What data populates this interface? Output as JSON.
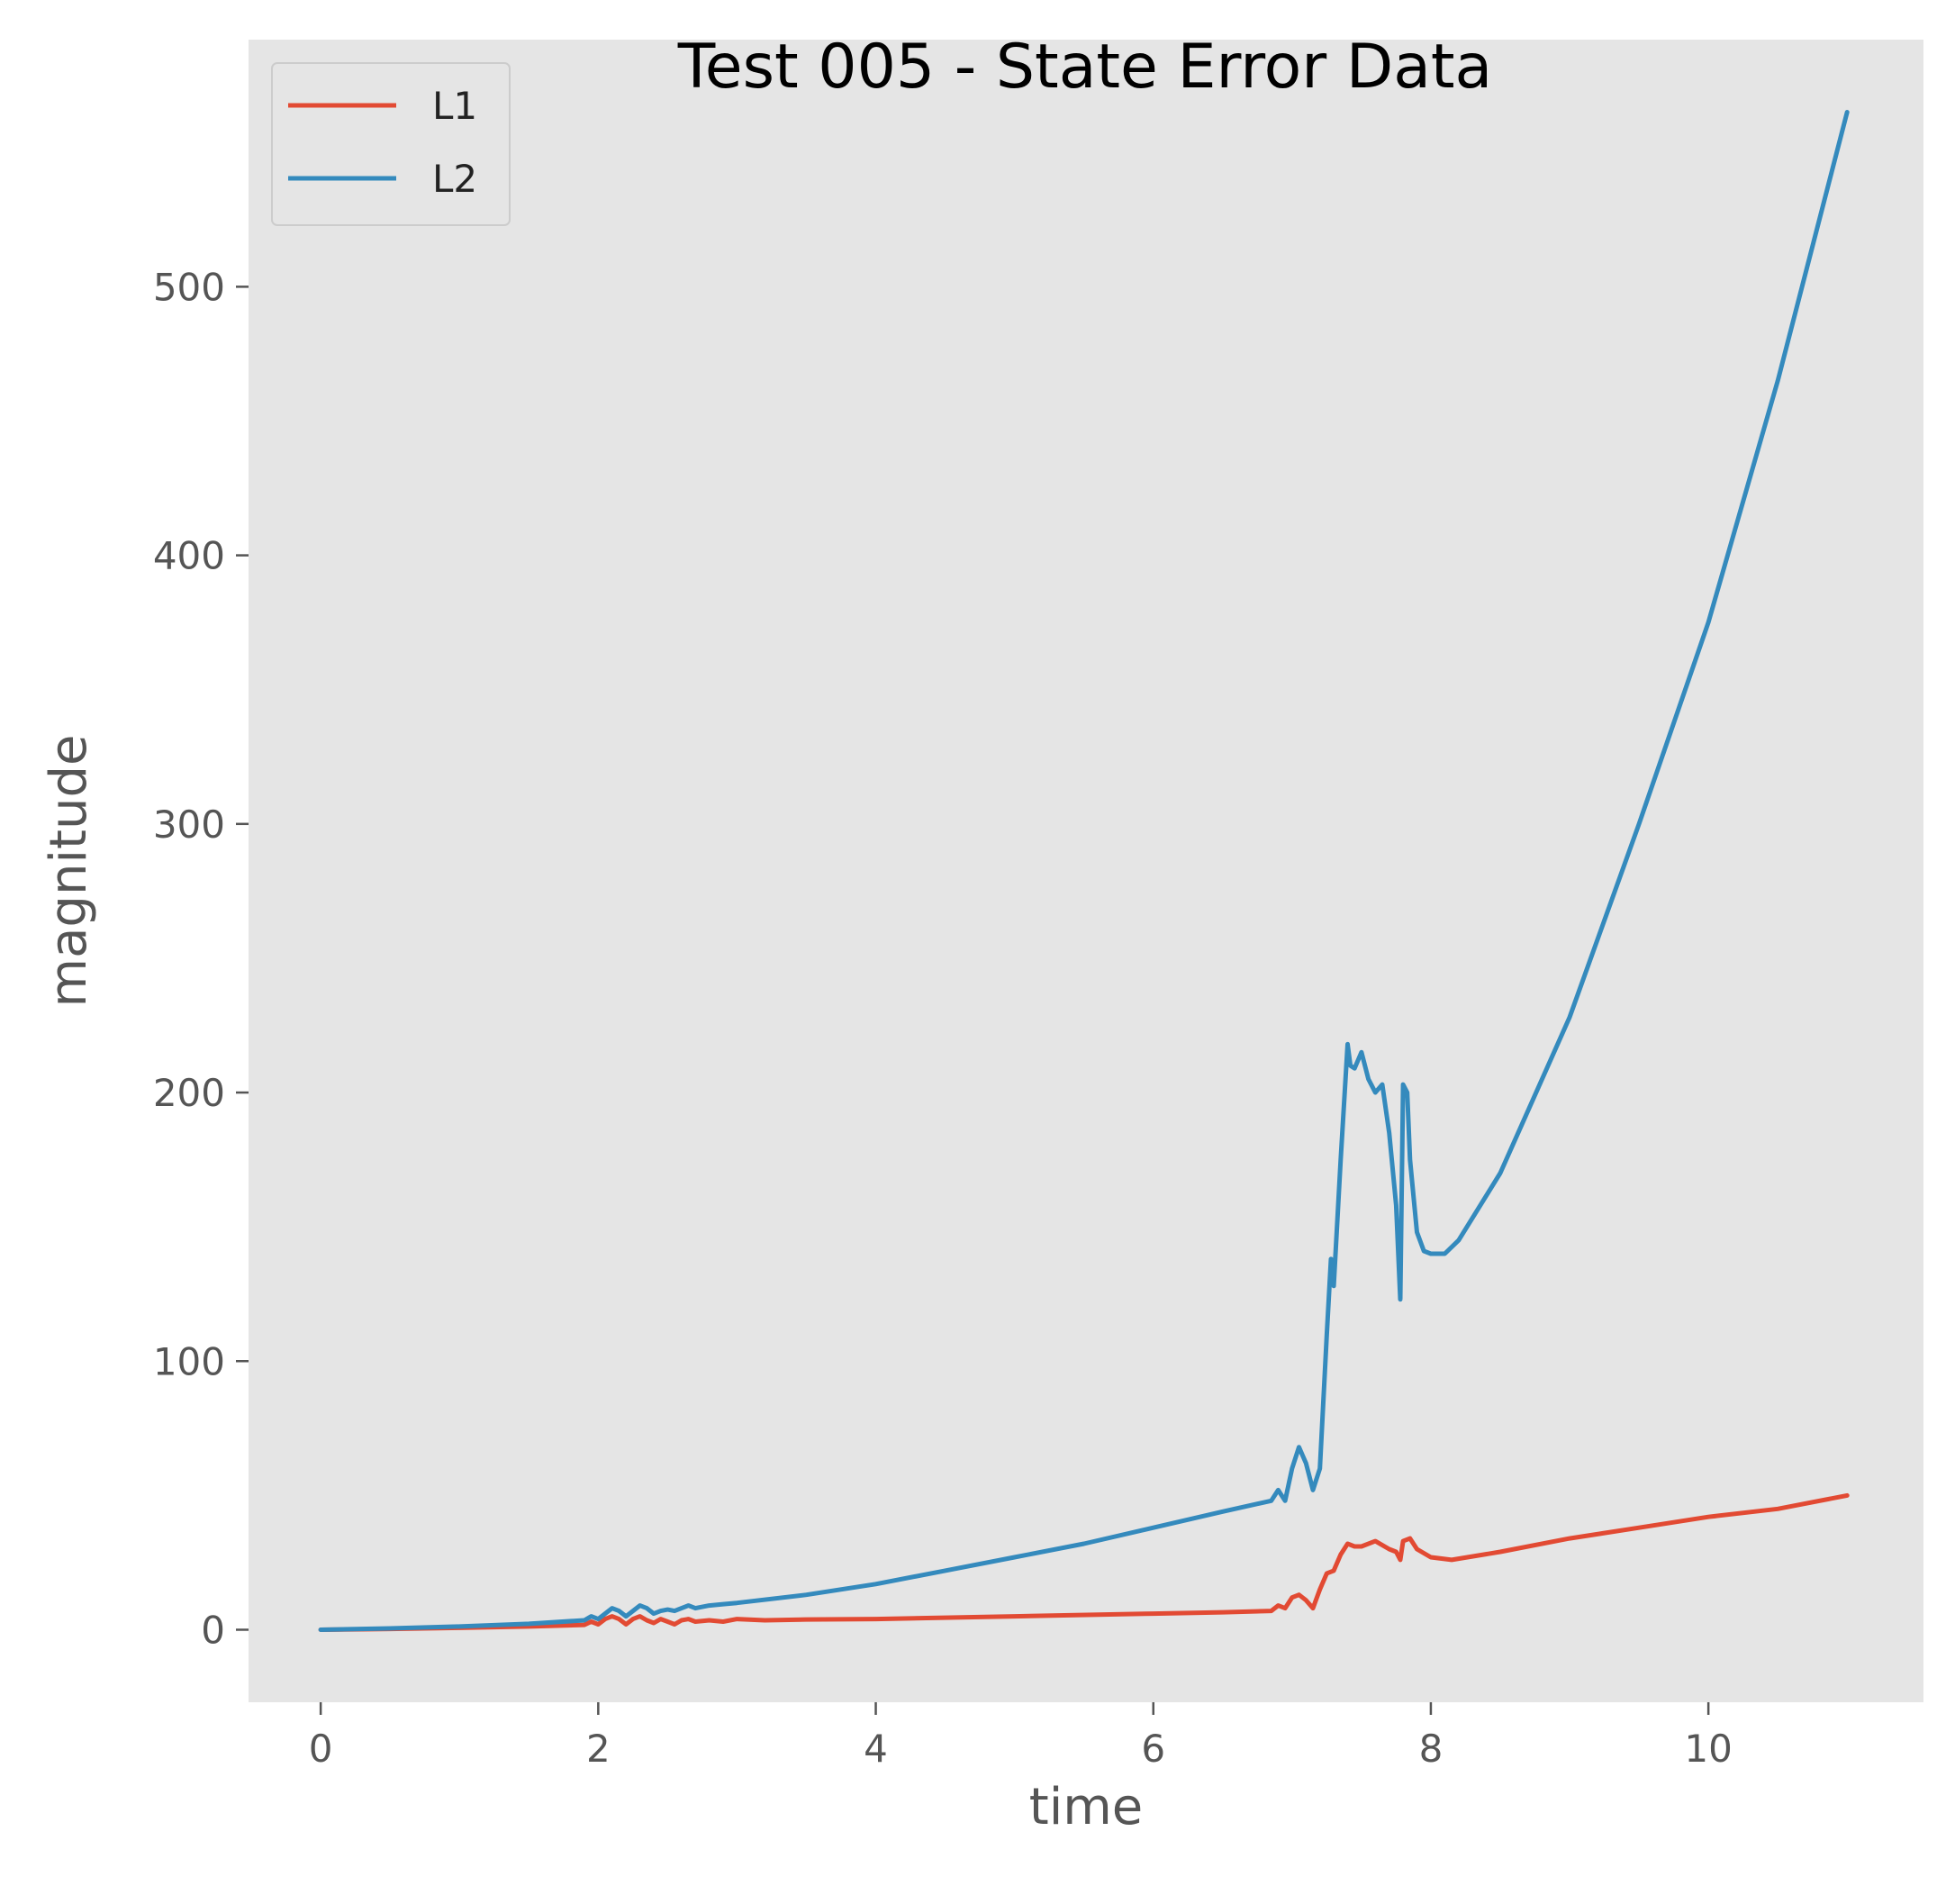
{
  "chart_data": {
    "type": "line",
    "title": "Test 005 - State Error Data",
    "xlabel": "time",
    "ylabel": "magnitude",
    "xlim": [
      -0.52,
      11.55
    ],
    "ylim": [
      -27,
      592
    ],
    "xticks": [
      0,
      2,
      4,
      6,
      8,
      10
    ],
    "yticks": [
      0,
      100,
      200,
      300,
      400,
      500
    ],
    "grid": false,
    "legend": {
      "placement": "top-left",
      "entries": [
        "L1",
        "L2"
      ]
    },
    "colors": {
      "plot_background": "#E5E5E5",
      "L1": "#E24A33",
      "L2": "#348ABD"
    },
    "series": [
      {
        "name": "L1",
        "x": [
          0,
          0.5,
          1.0,
          1.5,
          1.9,
          1.95,
          2.0,
          2.05,
          2.1,
          2.15,
          2.2,
          2.25,
          2.3,
          2.35,
          2.4,
          2.45,
          2.5,
          2.55,
          2.6,
          2.65,
          2.7,
          2.8,
          2.9,
          3.0,
          3.2,
          3.5,
          4.0,
          5.0,
          6.0,
          6.5,
          6.85,
          6.9,
          6.95,
          7.0,
          7.05,
          7.1,
          7.15,
          7.2,
          7.25,
          7.3,
          7.35,
          7.4,
          7.45,
          7.5,
          7.6,
          7.7,
          7.75,
          7.78,
          7.8,
          7.85,
          7.9,
          8.0,
          8.15,
          8.5,
          9.0,
          9.5,
          10.0,
          10.5,
          11.0
        ],
        "y": [
          0,
          0.3,
          0.7,
          1.2,
          1.8,
          3,
          2,
          4,
          5,
          4,
          2,
          4,
          5,
          3.5,
          2.5,
          4,
          3,
          2,
          3.5,
          4,
          3,
          3.5,
          3,
          4,
          3.5,
          3.8,
          4,
          5,
          6,
          6.5,
          7,
          9,
          8,
          12,
          13,
          11,
          8,
          15,
          21,
          22,
          28,
          32,
          31,
          31,
          33,
          30,
          29,
          26,
          33,
          34,
          30,
          27,
          26,
          29,
          34,
          38,
          42,
          45,
          50
        ]
      },
      {
        "name": "L2",
        "x": [
          0,
          0.5,
          1.0,
          1.5,
          1.9,
          1.95,
          2.0,
          2.05,
          2.1,
          2.15,
          2.2,
          2.25,
          2.3,
          2.35,
          2.4,
          2.45,
          2.5,
          2.55,
          2.6,
          2.65,
          2.7,
          2.8,
          2.9,
          3.0,
          3.5,
          4.0,
          4.5,
          5.0,
          5.5,
          6.0,
          6.5,
          6.85,
          6.9,
          6.95,
          7.0,
          7.05,
          7.1,
          7.15,
          7.2,
          7.25,
          7.28,
          7.3,
          7.35,
          7.4,
          7.42,
          7.45,
          7.5,
          7.55,
          7.6,
          7.65,
          7.7,
          7.75,
          7.78,
          7.8,
          7.83,
          7.85,
          7.9,
          7.95,
          8.0,
          8.1,
          8.2,
          8.5,
          9.0,
          9.5,
          10.0,
          10.5,
          11.0
        ],
        "y": [
          0,
          0.5,
          1.2,
          2.2,
          3.5,
          5,
          4,
          6,
          8,
          7,
          5,
          7,
          9,
          8,
          6,
          7,
          7.5,
          7,
          8,
          9,
          8,
          9,
          9.5,
          10,
          13,
          17,
          22,
          27,
          32,
          38,
          44,
          48,
          52,
          48,
          60,
          68,
          62,
          52,
          60,
          110,
          138,
          128,
          175,
          218,
          210,
          209,
          215,
          205,
          200,
          203,
          185,
          158,
          123,
          203,
          200,
          175,
          148,
          141,
          140,
          140,
          145,
          170,
          228,
          300,
          375,
          465,
          565
        ]
      }
    ]
  }
}
